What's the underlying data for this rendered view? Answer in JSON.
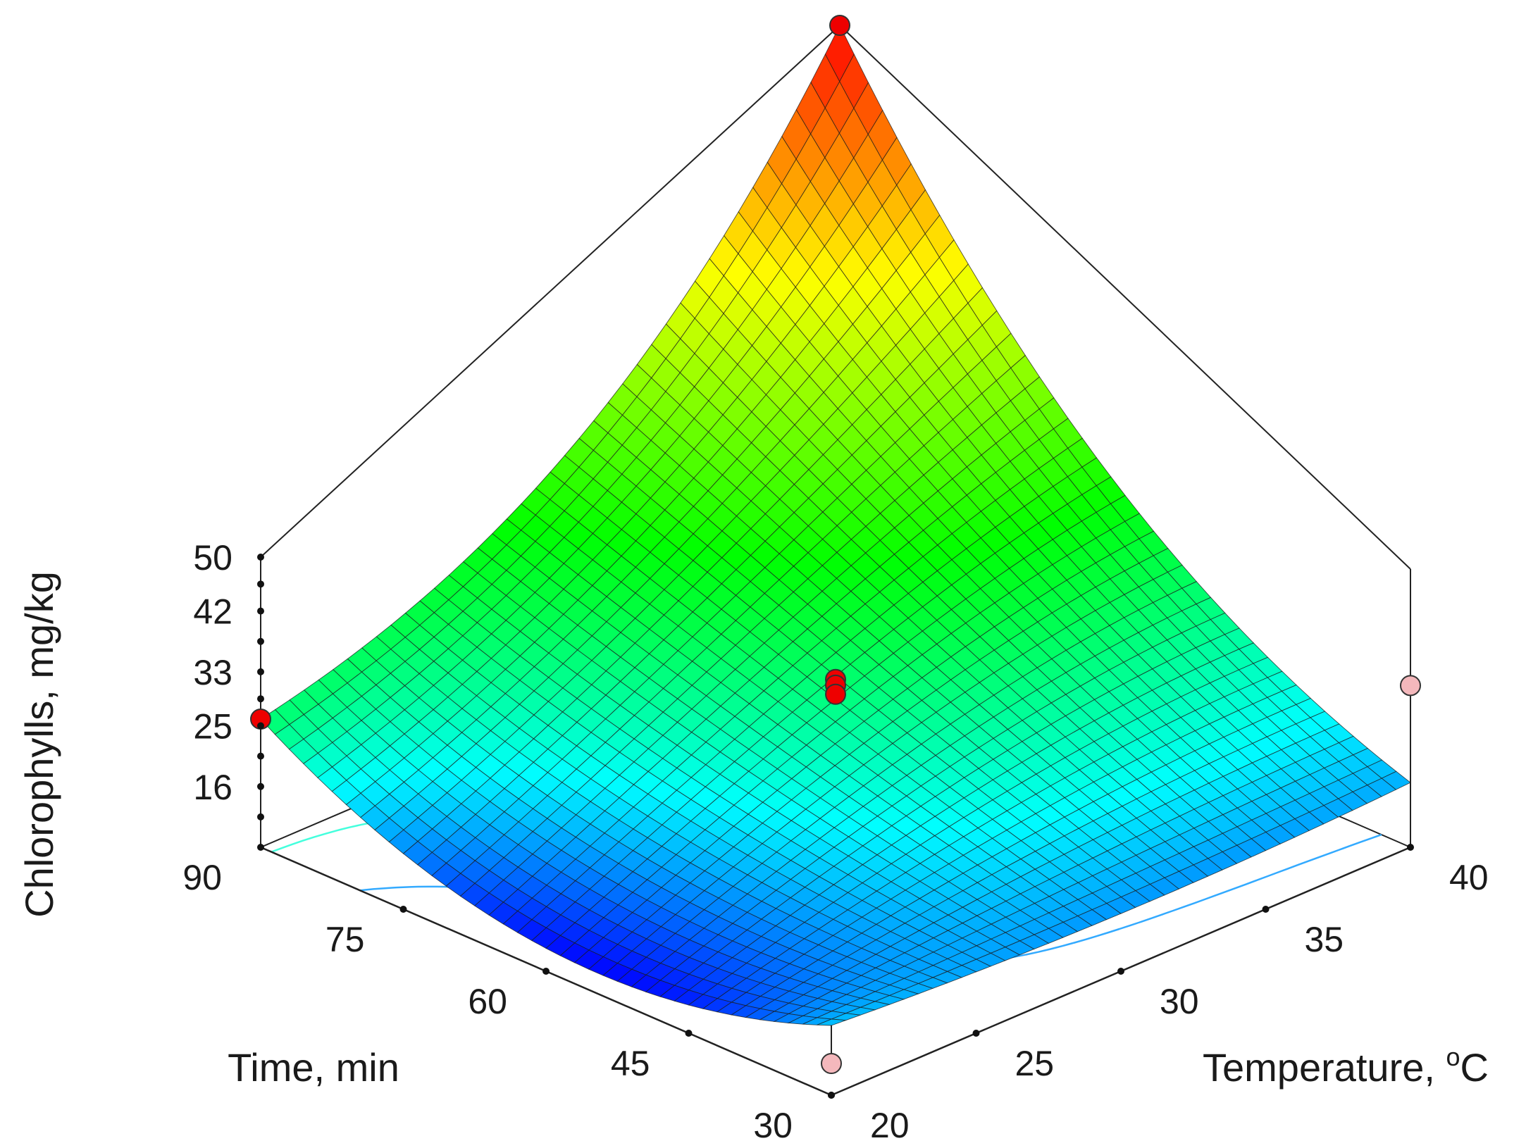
{
  "chart_data": {
    "type": "surface3d",
    "title": "",
    "x_axis": {
      "label": "Temperature, ",
      "label_sup": "o",
      "label_suffix": "C",
      "range": [
        20,
        40
      ],
      "ticks": [
        20,
        25,
        30,
        35,
        40
      ],
      "tick_labels": [
        "20",
        "25",
        "30",
        "35",
        "40"
      ]
    },
    "y_axis": {
      "label": "Time, min",
      "range": [
        30,
        90
      ],
      "ticks": [
        30,
        45,
        60,
        75,
        90
      ],
      "tick_labels": [
        "30",
        "45",
        "60",
        "75",
        "90"
      ]
    },
    "z_axis": {
      "label": "Chlorophylls, mg/kg",
      "range": [
        7,
        50
      ],
      "ticks": [
        16,
        25,
        33,
        42,
        50
      ],
      "tick_labels": [
        "16",
        "25",
        "33",
        "42",
        "50"
      ]
    },
    "surface": {
      "model": "quadratic",
      "temperature_values": [
        20,
        30,
        40
      ],
      "time_values": [
        30,
        60,
        90
      ],
      "z_grid": [
        [
          18,
          10.5,
          26
        ],
        [
          16,
          25,
          32
        ],
        [
          17,
          30,
          50
        ]
      ],
      "mesh_divisions": 40,
      "colormap": [
        "#0000ff",
        "#00ffff",
        "#00ff00",
        "#ffff00",
        "#ff0000"
      ],
      "contours": [
        {
          "z": 18,
          "color": "#33aaff"
        },
        {
          "z": 25,
          "color": "#44ffdd"
        },
        {
          "z": 32,
          "color": "#44ee66"
        }
      ]
    },
    "design_points": [
      {
        "temperature": 40,
        "time": 90,
        "z": 50,
        "above_surface": true
      },
      {
        "temperature": 20,
        "time": 90,
        "z": 26,
        "above_surface": true
      },
      {
        "temperature": 40,
        "time": 30,
        "z": 32,
        "above_surface": false
      },
      {
        "temperature": 20,
        "time": 30,
        "z": 12,
        "above_surface": false
      },
      {
        "temperature": 30,
        "time": 60,
        "z": 27.4,
        "above_surface": true
      },
      {
        "temperature": 30,
        "time": 60,
        "z": 26.7,
        "above_surface": true
      },
      {
        "temperature": 30,
        "time": 60,
        "z": 25.6,
        "above_surface": true
      }
    ],
    "point_colors": {
      "above": "#ee0000",
      "below": "#f4b8bc"
    },
    "grid": false,
    "legend": "none"
  }
}
